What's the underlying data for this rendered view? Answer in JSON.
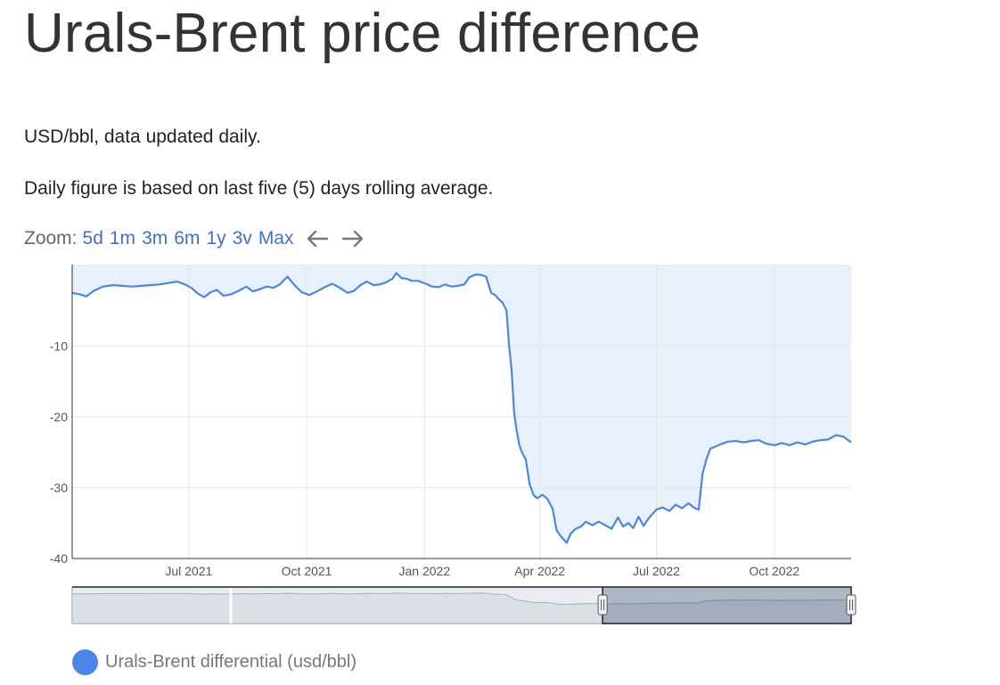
{
  "page": {
    "title": "Urals-Brent price difference",
    "subtitle_1": "USD/bbl, data updated daily.",
    "subtitle_2": "Daily figure is based on last five (5) days rolling average."
  },
  "zoom": {
    "label": "Zoom:",
    "buttons": [
      "5d",
      "1m",
      "3m",
      "6m",
      "1y",
      "3v",
      "Max"
    ],
    "back_icon": "arrow-left-icon",
    "forward_icon": "arrow-right-icon"
  },
  "legend": {
    "label": "Urals-Brent differential (usd/bbl)",
    "color": "#4a86e8"
  },
  "chart_data": {
    "type": "area",
    "title": "",
    "xlabel": "",
    "ylabel": "",
    "x_start": "2021-04-01",
    "x_end": "2022-11-30",
    "ylim": [
      -40,
      1.5
    ],
    "x_ticks": [
      {
        "date": "2021-07-01",
        "label": "Jul 2021"
      },
      {
        "date": "2021-10-01",
        "label": "Oct 2021"
      },
      {
        "date": "2022-01-01",
        "label": "Jan 2022"
      },
      {
        "date": "2022-04-01",
        "label": "Apr 2022"
      },
      {
        "date": "2022-07-01",
        "label": "Jul 2022"
      },
      {
        "date": "2022-10-01",
        "label": "Oct 2022"
      }
    ],
    "y_ticks": [
      -10,
      -20,
      -30,
      -40
    ],
    "grid": true,
    "series": [
      {
        "name": "Urals-Brent differential (usd/bbl)",
        "color": "#4a86e8",
        "points": [
          [
            "2021-04-01",
            -2.5
          ],
          [
            "2021-04-07",
            -2.7
          ],
          [
            "2021-04-12",
            -3.0
          ],
          [
            "2021-04-18",
            -2.2
          ],
          [
            "2021-04-25",
            -1.6
          ],
          [
            "2021-05-03",
            -1.4
          ],
          [
            "2021-05-10",
            -1.5
          ],
          [
            "2021-05-18",
            -1.6
          ],
          [
            "2021-05-25",
            -1.5
          ],
          [
            "2021-06-01",
            -1.4
          ],
          [
            "2021-06-08",
            -1.3
          ],
          [
            "2021-06-15",
            -1.1
          ],
          [
            "2021-06-22",
            -0.9
          ],
          [
            "2021-06-28",
            -1.3
          ],
          [
            "2021-07-03",
            -1.8
          ],
          [
            "2021-07-08",
            -2.6
          ],
          [
            "2021-07-13",
            -3.1
          ],
          [
            "2021-07-18",
            -2.4
          ],
          [
            "2021-07-23",
            -2.1
          ],
          [
            "2021-07-28",
            -2.9
          ],
          [
            "2021-08-03",
            -2.7
          ],
          [
            "2021-08-09",
            -2.2
          ],
          [
            "2021-08-15",
            -1.6
          ],
          [
            "2021-08-20",
            -2.3
          ],
          [
            "2021-08-25",
            -2.0
          ],
          [
            "2021-08-31",
            -1.6
          ],
          [
            "2021-09-05",
            -1.8
          ],
          [
            "2021-09-10",
            -1.3
          ],
          [
            "2021-09-16",
            -0.2
          ],
          [
            "2021-09-21",
            -1.3
          ],
          [
            "2021-09-27",
            -2.4
          ],
          [
            "2021-10-03",
            -2.8
          ],
          [
            "2021-10-09",
            -2.3
          ],
          [
            "2021-10-15",
            -1.7
          ],
          [
            "2021-10-21",
            -1.2
          ],
          [
            "2021-10-27",
            -1.8
          ],
          [
            "2021-11-02",
            -2.5
          ],
          [
            "2021-11-07",
            -2.2
          ],
          [
            "2021-11-12",
            -1.4
          ],
          [
            "2021-11-17",
            -0.9
          ],
          [
            "2021-11-22",
            -1.4
          ],
          [
            "2021-11-27",
            -1.3
          ],
          [
            "2021-12-02",
            -1.0
          ],
          [
            "2021-12-07",
            -0.5
          ],
          [
            "2021-12-10",
            0.3
          ],
          [
            "2021-12-14",
            -0.4
          ],
          [
            "2021-12-18",
            -0.5
          ],
          [
            "2021-12-22",
            -0.8
          ],
          [
            "2021-12-27",
            -0.8
          ],
          [
            "2022-01-02",
            -1.2
          ],
          [
            "2022-01-07",
            -1.6
          ],
          [
            "2022-01-12",
            -1.7
          ],
          [
            "2022-01-17",
            -1.3
          ],
          [
            "2022-01-22",
            -1.6
          ],
          [
            "2022-01-27",
            -1.5
          ],
          [
            "2022-02-01",
            -1.3
          ],
          [
            "2022-02-05",
            -0.3
          ],
          [
            "2022-02-10",
            0.1
          ],
          [
            "2022-02-15",
            0.0
          ],
          [
            "2022-02-18",
            -0.2
          ],
          [
            "2022-02-22",
            -2.5
          ],
          [
            "2022-02-25",
            -2.8
          ],
          [
            "2022-02-28",
            -3.4
          ],
          [
            "2022-03-03",
            -3.9
          ],
          [
            "2022-03-06",
            -5.0
          ],
          [
            "2022-03-08",
            -10.0
          ],
          [
            "2022-03-10",
            -13.5
          ],
          [
            "2022-03-12",
            -19.5
          ],
          [
            "2022-03-14",
            -22.0
          ],
          [
            "2022-03-16",
            -24.0
          ],
          [
            "2022-03-18",
            -25.0
          ],
          [
            "2022-03-21",
            -26.0
          ],
          [
            "2022-03-24",
            -29.5
          ],
          [
            "2022-03-27",
            -31.0
          ],
          [
            "2022-03-30",
            -31.5
          ],
          [
            "2022-04-03",
            -31.0
          ],
          [
            "2022-04-07",
            -31.6
          ],
          [
            "2022-04-11",
            -33.0
          ],
          [
            "2022-04-14",
            -36.0
          ],
          [
            "2022-04-18",
            -37.0
          ],
          [
            "2022-04-22",
            -37.8
          ],
          [
            "2022-04-25",
            -36.5
          ],
          [
            "2022-04-29",
            -35.8
          ],
          [
            "2022-05-03",
            -35.5
          ],
          [
            "2022-05-07",
            -34.8
          ],
          [
            "2022-05-12",
            -35.3
          ],
          [
            "2022-05-17",
            -34.8
          ],
          [
            "2022-05-22",
            -35.3
          ],
          [
            "2022-05-27",
            -35.8
          ],
          [
            "2022-06-01",
            -34.2
          ],
          [
            "2022-06-05",
            -35.5
          ],
          [
            "2022-06-09",
            -35.0
          ],
          [
            "2022-06-13",
            -35.7
          ],
          [
            "2022-06-17",
            -34.1
          ],
          [
            "2022-06-21",
            -35.4
          ],
          [
            "2022-06-25",
            -34.3
          ],
          [
            "2022-07-01",
            -33.1
          ],
          [
            "2022-07-06",
            -32.8
          ],
          [
            "2022-07-11",
            -33.3
          ],
          [
            "2022-07-16",
            -32.4
          ],
          [
            "2022-07-21",
            -32.9
          ],
          [
            "2022-07-26",
            -32.2
          ],
          [
            "2022-07-31",
            -32.9
          ],
          [
            "2022-08-03",
            -33.1
          ],
          [
            "2022-08-06",
            -28.0
          ],
          [
            "2022-08-09",
            -26.0
          ],
          [
            "2022-08-12",
            -24.5
          ],
          [
            "2022-08-16",
            -24.2
          ],
          [
            "2022-08-21",
            -23.8
          ],
          [
            "2022-08-26",
            -23.5
          ],
          [
            "2022-09-01",
            -23.4
          ],
          [
            "2022-09-07",
            -23.6
          ],
          [
            "2022-09-13",
            -23.4
          ],
          [
            "2022-09-19",
            -23.3
          ],
          [
            "2022-09-25",
            -23.8
          ],
          [
            "2022-10-01",
            -24.0
          ],
          [
            "2022-10-07",
            -23.7
          ],
          [
            "2022-10-13",
            -24.0
          ],
          [
            "2022-10-19",
            -23.6
          ],
          [
            "2022-10-25",
            -23.9
          ],
          [
            "2022-10-31",
            -23.5
          ],
          [
            "2022-11-06",
            -23.3
          ],
          [
            "2022-11-12",
            -23.2
          ],
          [
            "2022-11-18",
            -22.6
          ],
          [
            "2022-11-24",
            -22.8
          ],
          [
            "2022-11-30",
            -23.6
          ]
        ]
      }
    ],
    "navigator": {
      "range_start": "2022-05-20",
      "range_end": "2022-11-30"
    }
  }
}
